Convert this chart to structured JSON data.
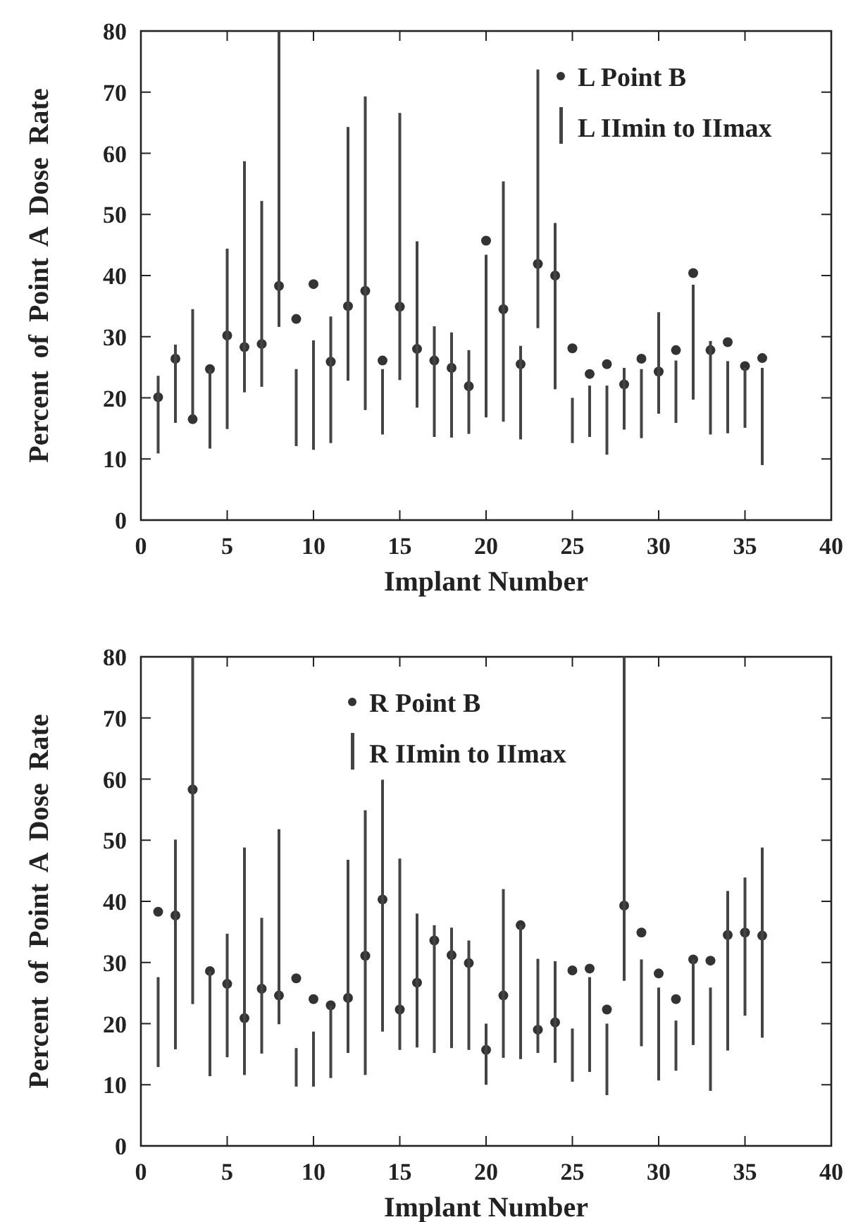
{
  "chart_data": [
    {
      "type": "scatter",
      "xlabel": "Implant Number",
      "ylabel": "Percent of Point A Dose Rate",
      "x": [
        1,
        2,
        3,
        4,
        5,
        6,
        7,
        8,
        9,
        10,
        11,
        12,
        13,
        14,
        15,
        16,
        17,
        18,
        19,
        20,
        21,
        22,
        23,
        24,
        25,
        26,
        27,
        28,
        29,
        30,
        31,
        32,
        33,
        34,
        35,
        36
      ],
      "xlim": [
        0,
        40
      ],
      "xticks": [
        0,
        5,
        10,
        15,
        20,
        25,
        30,
        35,
        40
      ],
      "ylim": [
        0,
        80
      ],
      "yticks": [
        0,
        10,
        20,
        30,
        40,
        50,
        60,
        70,
        80
      ],
      "grid": false,
      "legend": "top right",
      "marker": "circle",
      "series": [
        {
          "name": "L Point B",
          "color": "#333333",
          "values": [
            20.1,
            26.4,
            16.5,
            24.7,
            30.2,
            28.3,
            28.8,
            38.3,
            32.9,
            38.6,
            25.9,
            35.0,
            37.5,
            26.1,
            34.9,
            28.0,
            26.1,
            24.9,
            21.9,
            45.7,
            34.5,
            25.5,
            41.9,
            40.0,
            28.1,
            23.9,
            25.5,
            22.2,
            26.4,
            24.3,
            27.8,
            40.4,
            27.8,
            29.1,
            25.2,
            26.5
          ]
        },
        {
          "name": "L  IImin to IImax",
          "type": "bar",
          "color": "#444444",
          "base": [
            10.9,
            15.9,
            17.0,
            11.7,
            14.9,
            20.9,
            21.8,
            31.6,
            12.1,
            11.5,
            12.6,
            22.8,
            18.0,
            14.0,
            22.9,
            18.4,
            13.6,
            13.5,
            14.1,
            16.8,
            16.1,
            13.2,
            31.4,
            21.4,
            12.6,
            13.6,
            10.7,
            14.8,
            13.4,
            17.4,
            15.9,
            19.7,
            14.0,
            14.2,
            15.1,
            9.0
          ],
          "values": [
            12.7,
            12.8,
            17.5,
            13.0,
            29.5,
            37.8,
            30.4,
            48.4,
            12.6,
            17.9,
            20.7,
            41.5,
            51.3,
            10.7,
            43.7,
            27.2,
            18.1,
            17.2,
            13.7,
            26.6,
            39.3,
            15.3,
            42.3,
            27.2,
            7.4,
            8.4,
            11.3,
            10.1,
            11.3,
            16.6,
            10.2,
            18.8,
            15.3,
            11.8,
            9.8,
            15.9
          ]
        }
      ]
    },
    {
      "type": "scatter",
      "xlabel": "Implant Number",
      "ylabel": "Percent of Point A Dose Rate",
      "x": [
        1,
        2,
        3,
        4,
        5,
        6,
        7,
        8,
        9,
        10,
        11,
        12,
        13,
        14,
        15,
        16,
        17,
        18,
        19,
        20,
        21,
        22,
        23,
        24,
        25,
        26,
        27,
        28,
        29,
        30,
        31,
        32,
        33,
        34,
        35,
        36
      ],
      "xlim": [
        0,
        40
      ],
      "xticks": [
        0,
        5,
        10,
        15,
        20,
        25,
        30,
        35,
        40
      ],
      "ylim": [
        0,
        80
      ],
      "yticks": [
        0,
        10,
        20,
        30,
        40,
        50,
        60,
        70,
        80
      ],
      "grid": false,
      "legend": "top",
      "marker": "circle",
      "series": [
        {
          "name": "R Point B",
          "color": "#333333",
          "values": [
            38.3,
            37.7,
            58.3,
            28.6,
            26.5,
            20.9,
            25.7,
            24.6,
            27.4,
            24.0,
            23.0,
            24.2,
            31.1,
            40.3,
            22.3,
            26.7,
            33.6,
            31.2,
            29.9,
            15.7,
            24.6,
            36.1,
            19.0,
            20.2,
            28.7,
            29.0,
            22.3,
            39.3,
            34.9,
            28.2,
            24.0,
            30.5,
            30.3,
            34.5,
            34.9,
            34.4
          ]
        },
        {
          "name": "R  IImin to IImax",
          "type": "bar",
          "color": "#444444",
          "base": [
            12.9,
            15.8,
            23.2,
            11.4,
            14.5,
            11.6,
            15.1,
            19.9,
            9.7,
            9.7,
            11.1,
            15.2,
            11.6,
            18.7,
            15.7,
            16.1,
            15.2,
            16.0,
            15.7,
            10.0,
            14.4,
            14.2,
            15.2,
            13.6,
            10.5,
            12.1,
            8.3,
            27.0,
            16.3,
            10.7,
            12.3,
            16.5,
            9.0,
            15.6,
            21.3,
            17.7
          ],
          "values": [
            14.7,
            34.3,
            56.8,
            17.2,
            20.2,
            37.2,
            22.2,
            31.9,
            6.3,
            9.0,
            11.9,
            31.6,
            43.3,
            41.2,
            31.3,
            21.9,
            20.9,
            19.7,
            17.9,
            10.0,
            27.6,
            21.9,
            15.4,
            16.6,
            8.7,
            15.5,
            11.7,
            53.0,
            14.2,
            15.2,
            8.2,
            14.0,
            16.9,
            26.1,
            22.6,
            31.1
          ]
        }
      ]
    }
  ]
}
